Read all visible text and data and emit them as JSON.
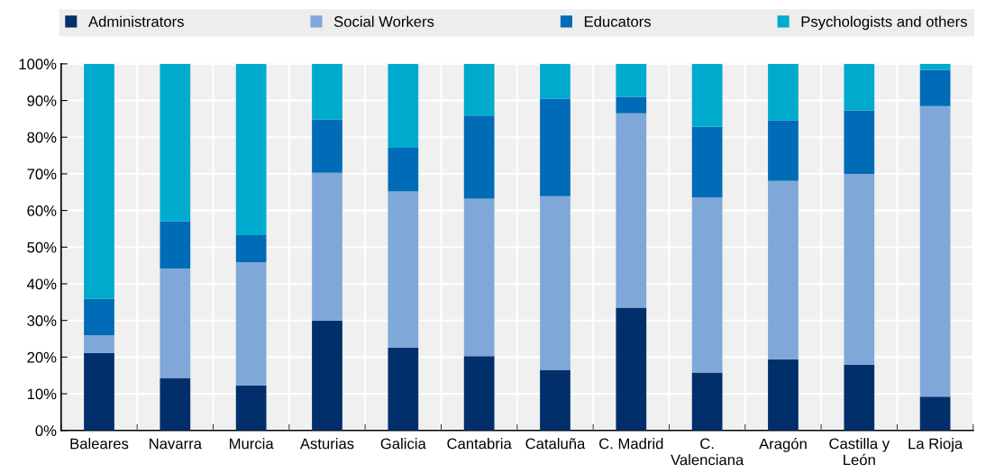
{
  "chart_data": {
    "type": "bar",
    "stacked": true,
    "categories": [
      "Baleares",
      "Navarra",
      "Murcia",
      "Asturias",
      "Galicia",
      "Cantabria",
      "Cataluña",
      "C. Madrid",
      "C.\nValenciana",
      "Aragón",
      "Castilla y\nLeón",
      "La Rioja"
    ],
    "series": [
      {
        "name": "Administrators",
        "color": "#002f6c",
        "values": [
          21.1,
          14.3,
          12.3,
          30.0,
          22.6,
          20.3,
          16.5,
          33.5,
          15.8,
          19.4,
          17.9,
          9.2
        ]
      },
      {
        "name": "Social Workers",
        "color": "#7fa8d8",
        "values": [
          4.9,
          29.9,
          33.6,
          40.3,
          42.6,
          42.9,
          47.4,
          53.0,
          47.8,
          48.7,
          52.1,
          79.3
        ]
      },
      {
        "name": "Educators",
        "color": "#006bb6",
        "values": [
          9.9,
          12.8,
          7.4,
          14.5,
          11.9,
          22.7,
          26.6,
          4.5,
          19.2,
          16.5,
          17.3,
          9.9
        ]
      },
      {
        "name": "Psychologists and others",
        "color": "#00aacc",
        "values": [
          64.1,
          43.0,
          46.7,
          15.2,
          22.9,
          14.1,
          9.5,
          9.0,
          17.2,
          15.4,
          12.7,
          1.6
        ]
      }
    ],
    "ylim": [
      0,
      100
    ],
    "yticks": [
      {
        "value": 0,
        "label": "0%"
      },
      {
        "value": 10,
        "label": "10%"
      },
      {
        "value": 20,
        "label": "20%"
      },
      {
        "value": 30,
        "label": "30%"
      },
      {
        "value": 40,
        "label": "40%"
      },
      {
        "value": 50,
        "label": "50%"
      },
      {
        "value": 60,
        "label": "60%"
      },
      {
        "value": 70,
        "label": "70%"
      },
      {
        "value": 80,
        "label": "80%"
      },
      {
        "value": 90,
        "label": "90%"
      },
      {
        "value": 100,
        "label": "100%"
      }
    ],
    "grid": true,
    "legend": "top"
  }
}
